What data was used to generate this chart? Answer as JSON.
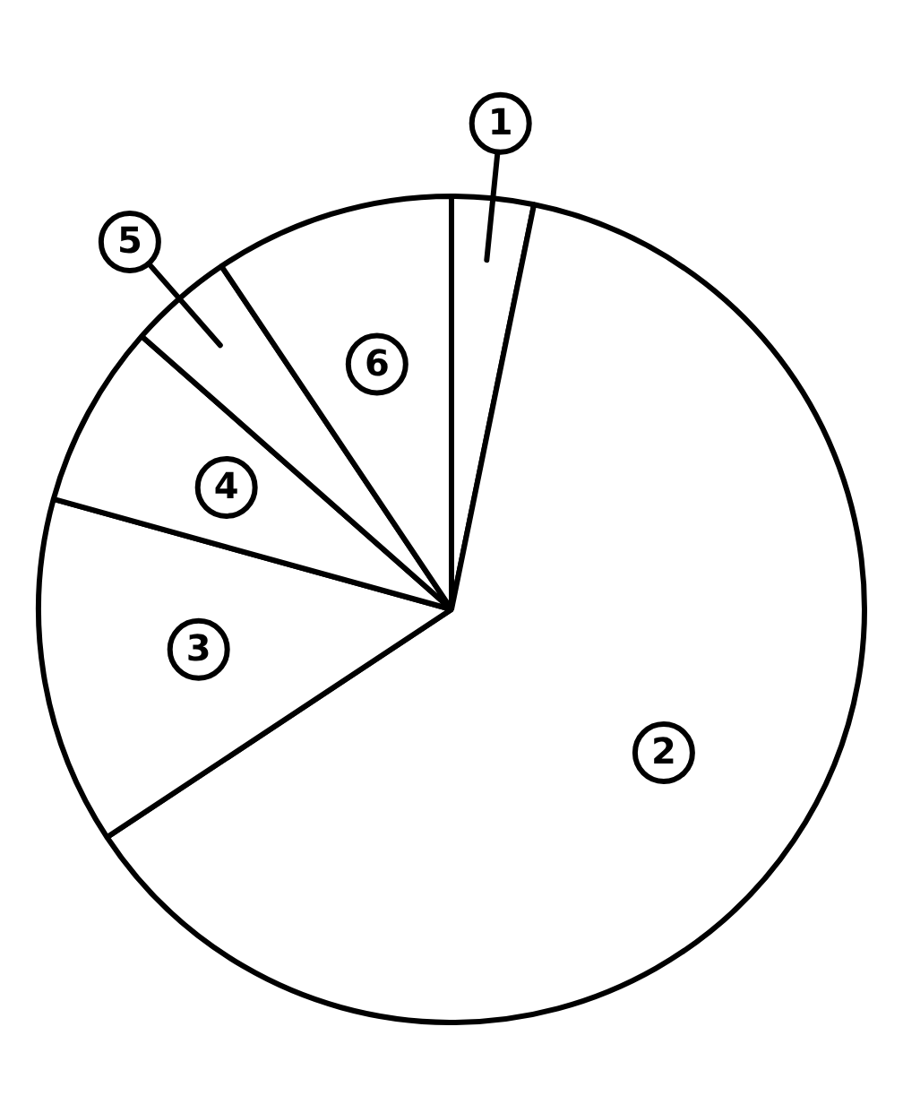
{
  "chart_data": {
    "type": "pie",
    "categories": [
      "1",
      "2",
      "3",
      "4",
      "5",
      "6"
    ],
    "values": [
      3.2,
      62.5,
      13.6,
      7.2,
      4.1,
      9.4
    ],
    "colors": [
      "#ffffff",
      "#ffffff",
      "#ffffff",
      "#ffffff",
      "#ffffff",
      "#ffffff"
    ],
    "legend": false
  }
}
